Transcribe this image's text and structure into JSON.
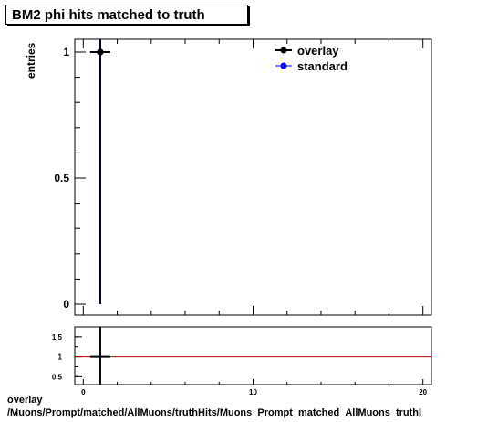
{
  "title": "BM2 phi hits matched to truth",
  "footer": {
    "line1": "overlay",
    "line2": "/Muons/Prompt/matched/AllMuons/truthHits/Muons_Prompt_matched_AllMuons_truthI"
  },
  "chart_data": [
    {
      "type": "scatter",
      "title": "BM2 phi hits matched to truth",
      "ylabel": "entries",
      "xlabel": "",
      "xlim": [
        -0.5,
        20.5
      ],
      "ylim": [
        0,
        1.05
      ],
      "yticks": [
        "0",
        "0.5",
        "1"
      ],
      "legend_position": "top-right",
      "series": [
        {
          "name": "overlay",
          "color": "#000000",
          "points": [
            {
              "x": 1,
              "y": 1,
              "yerr": 1
            }
          ]
        },
        {
          "name": "standard",
          "color": "#0000ff",
          "points": [
            {
              "x": 1,
              "y": 1,
              "yerr": 1
            }
          ]
        }
      ]
    },
    {
      "type": "line",
      "xlim": [
        -0.5,
        20.5
      ],
      "ylim": [
        0.3,
        1.75
      ],
      "xticks": [
        "0",
        "10",
        "20"
      ],
      "yticks": [
        "0.5",
        "1",
        "1.5"
      ],
      "reference_line": {
        "y": 1,
        "color": "#b00000"
      },
      "series": [
        {
          "name": "",
          "color": "#000000",
          "points": [
            {
              "x": 1,
              "y": 1,
              "yerr": 1
            }
          ]
        }
      ]
    }
  ]
}
